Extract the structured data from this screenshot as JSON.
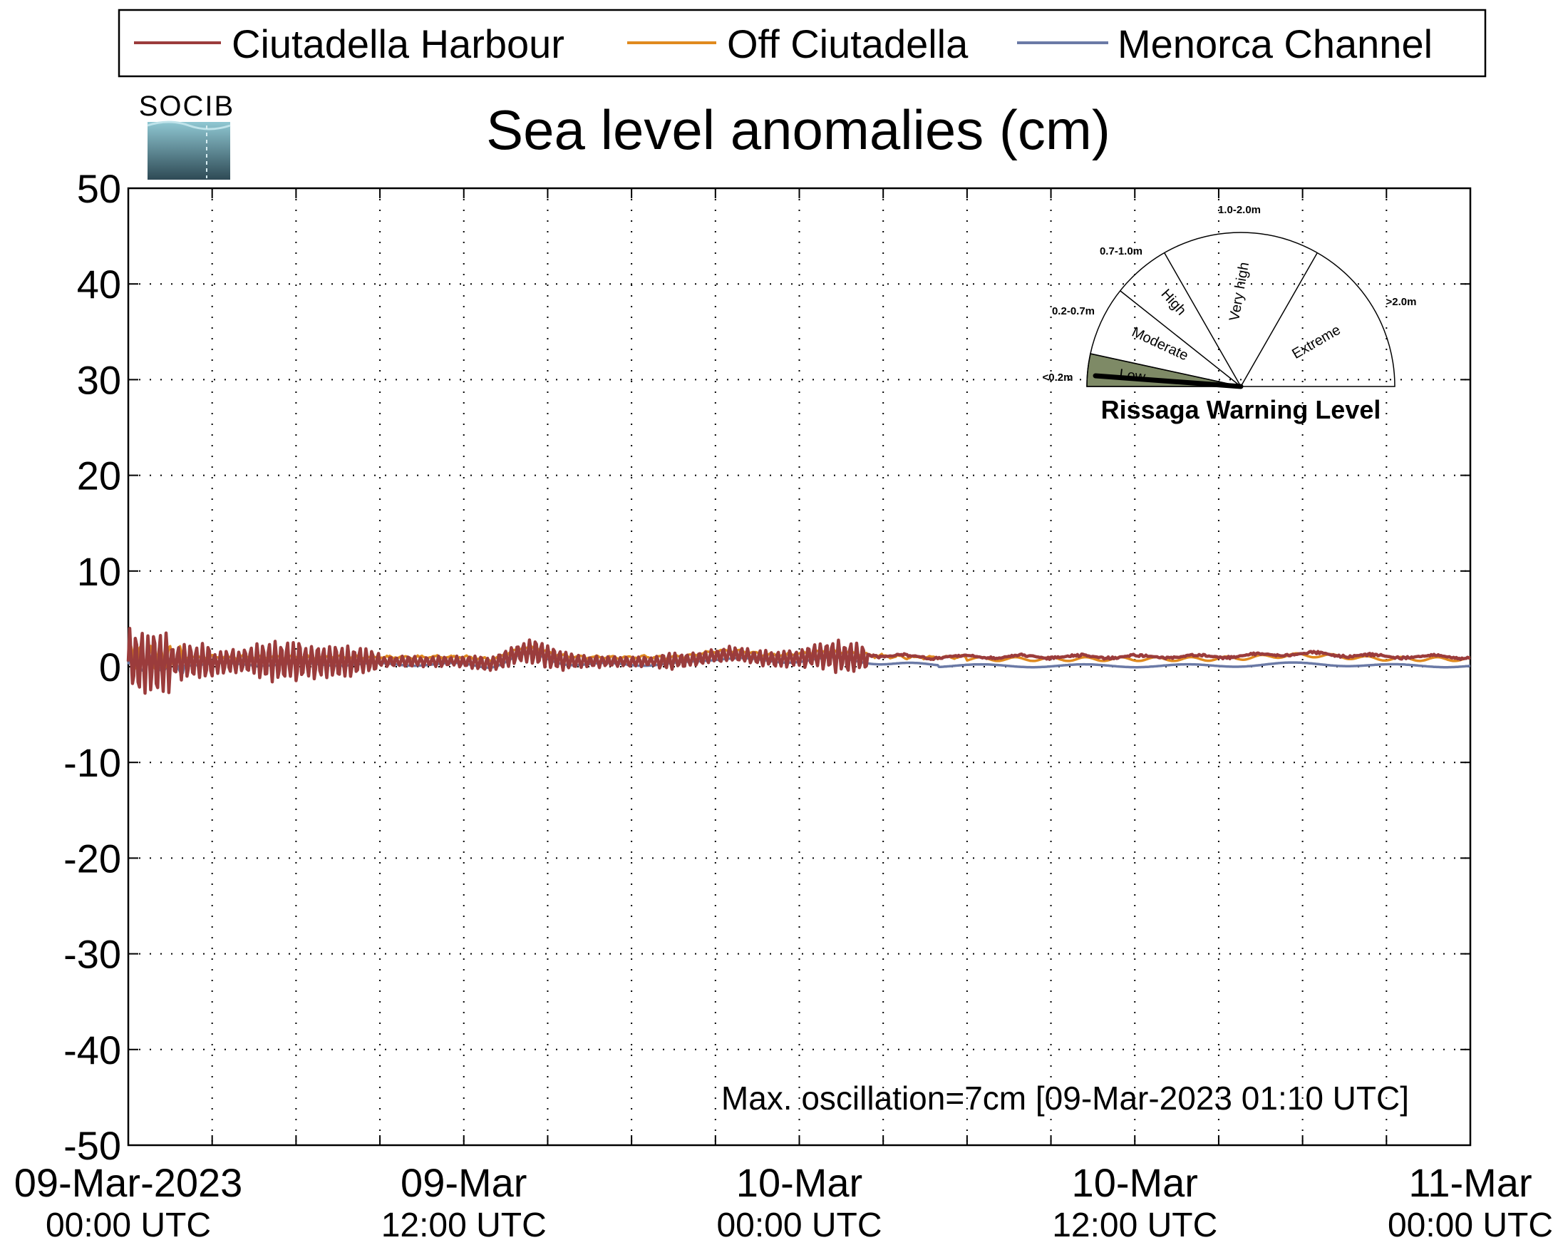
{
  "chart_data": {
    "type": "line",
    "title": "Sea level anomalies (cm)",
    "logo_text": "SOCIB",
    "ylim": [
      -50,
      50
    ],
    "yticks": [
      50,
      40,
      30,
      20,
      10,
      0,
      -10,
      -20,
      -30,
      -40,
      -50
    ],
    "xlim_hours": [
      0,
      48
    ],
    "grid": true,
    "legend_placement": "top",
    "xtick_labels": [
      {
        "hour": 0,
        "line1": "09-Mar-2023",
        "line2": "00:00 UTC"
      },
      {
        "hour": 12,
        "line1": "09-Mar",
        "line2": "12:00 UTC"
      },
      {
        "hour": 24,
        "line1": "10-Mar",
        "line2": "00:00 UTC"
      },
      {
        "hour": 36,
        "line1": "10-Mar",
        "line2": "12:00 UTC"
      },
      {
        "hour": 48,
        "line1": "11-Mar",
        "line2": "00:00 UTC"
      }
    ],
    "series": [
      {
        "name": "Ciutadella Harbour",
        "color": "#9b3c3c",
        "role": "harbour"
      },
      {
        "name": "Off Ciutadella",
        "color": "#e08a1e",
        "role": "off"
      },
      {
        "name": "Menorca Channel",
        "color": "#6b7aa6",
        "role": "channel"
      }
    ],
    "annotation": {
      "text": "Max. oscillation=7cm [09-Mar-2023 01:10 UTC]",
      "color": "#9b3c3c"
    },
    "gauge": {
      "title": "Rissaga Warning Level",
      "levels": [
        {
          "name": "Low",
          "range": "<0.2m",
          "range_color": "#6b7a4a"
        },
        {
          "name": "Moderate",
          "range": "0.2-0.7m",
          "range_color": "#4f6e6a"
        },
        {
          "name": "High",
          "range": "0.7-1.0m",
          "range_color": "#e0d21a"
        },
        {
          "name": "Very high",
          "range": "1.0-2.0m",
          "range_color": "#e87a10"
        },
        {
          "name": "Extreme",
          "range": ">2.0m",
          "range_color": "#e01010"
        }
      ],
      "active_level": "Low",
      "active_fill": "#7e8a66"
    }
  }
}
